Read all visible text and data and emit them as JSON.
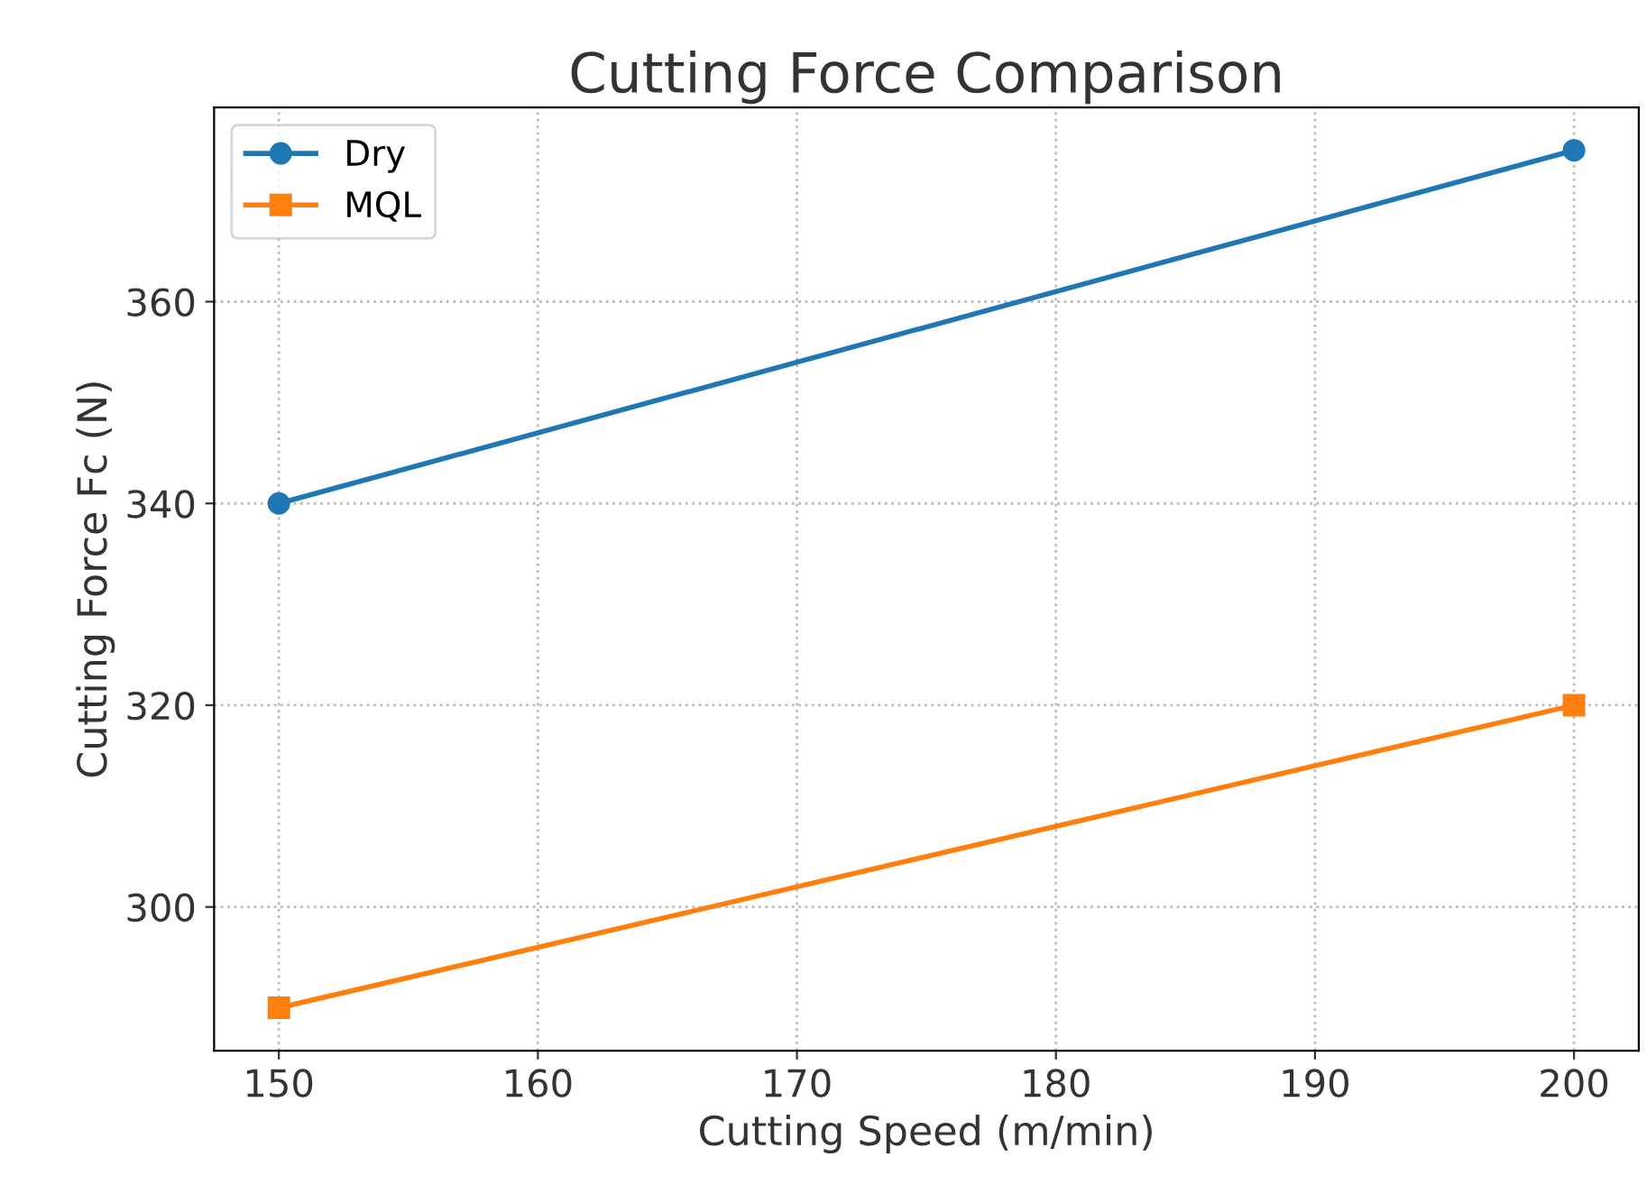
{
  "chart_data": {
    "type": "line",
    "title": "Cutting Force Comparison",
    "xlabel": "Cutting Speed (m/min)",
    "ylabel": "Cutting Force Fc (N)",
    "x": [
      150,
      200
    ],
    "series": [
      {
        "name": "Dry",
        "color": "#1f77b4",
        "values": [
          340,
          375
        ],
        "marker": "circle"
      },
      {
        "name": "MQL",
        "color": "#ff7f0e",
        "values": [
          290,
          320
        ],
        "marker": "square"
      }
    ],
    "xlim": [
      147.5,
      202.5
    ],
    "xticks": [
      150,
      160,
      170,
      180,
      190,
      200
    ],
    "ylim": [
      285.75,
      379.25
    ],
    "yticks": [
      300,
      320,
      340,
      360
    ],
    "grid": true,
    "legend": "top left",
    "line_style": "solid"
  }
}
